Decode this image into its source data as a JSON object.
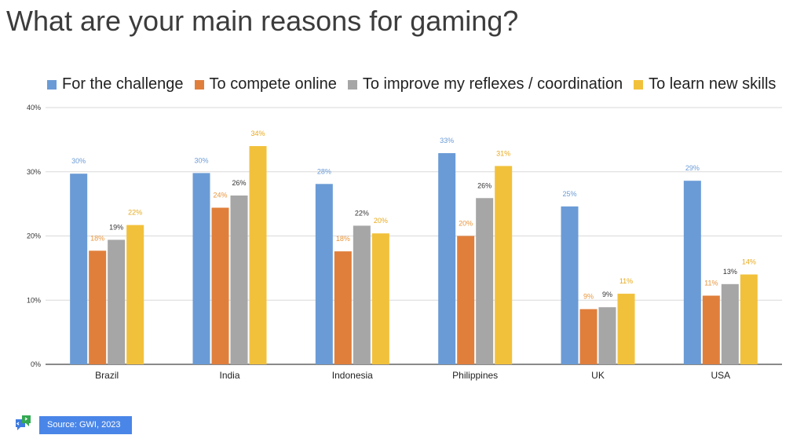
{
  "title": "What are your main reasons for gaming?",
  "source": "Source: GWI, 2023",
  "colors": {
    "series": [
      "#6a9bd6",
      "#e07f3c",
      "#a6a6a6",
      "#f2c13b"
    ],
    "label_text": [
      "#6a9bd6",
      "#e8953c",
      "#333333",
      "#e8a91c"
    ],
    "grid": "#d9d9d9",
    "axis": "#444444"
  },
  "chart_data": {
    "type": "bar",
    "categories": [
      "Brazil",
      "India",
      "Indonesia",
      "Philippines",
      "UK",
      "USA"
    ],
    "series": [
      {
        "name": "For the challenge",
        "values": [
          29.7,
          29.8,
          28.1,
          32.9,
          24.6,
          28.6
        ],
        "labels": [
          "30%",
          "30%",
          "28%",
          "33%",
          "25%",
          "29%"
        ]
      },
      {
        "name": "To compete online",
        "values": [
          17.7,
          24.4,
          17.6,
          20.0,
          8.6,
          10.7
        ],
        "labels": [
          "18%",
          "24%",
          "18%",
          "20%",
          "9%",
          "11%"
        ]
      },
      {
        "name": "To improve my reflexes / coordination",
        "values": [
          19.4,
          26.3,
          21.6,
          25.9,
          8.9,
          12.5
        ],
        "labels": [
          "19%",
          "26%",
          "22%",
          "26%",
          "9%",
          "13%"
        ]
      },
      {
        "name": "To learn new skills",
        "values": [
          21.7,
          34.0,
          20.4,
          30.9,
          11.0,
          14.0
        ],
        "labels": [
          "22%",
          "34%",
          "20%",
          "31%",
          "11%",
          "14%"
        ]
      }
    ],
    "ylim": [
      0,
      40
    ],
    "yticks": [
      "0%",
      "10%",
      "20%",
      "30%",
      "40%"
    ],
    "ytick_values": [
      0,
      10,
      20,
      30,
      40
    ],
    "grid": true,
    "legend_position": "top"
  }
}
